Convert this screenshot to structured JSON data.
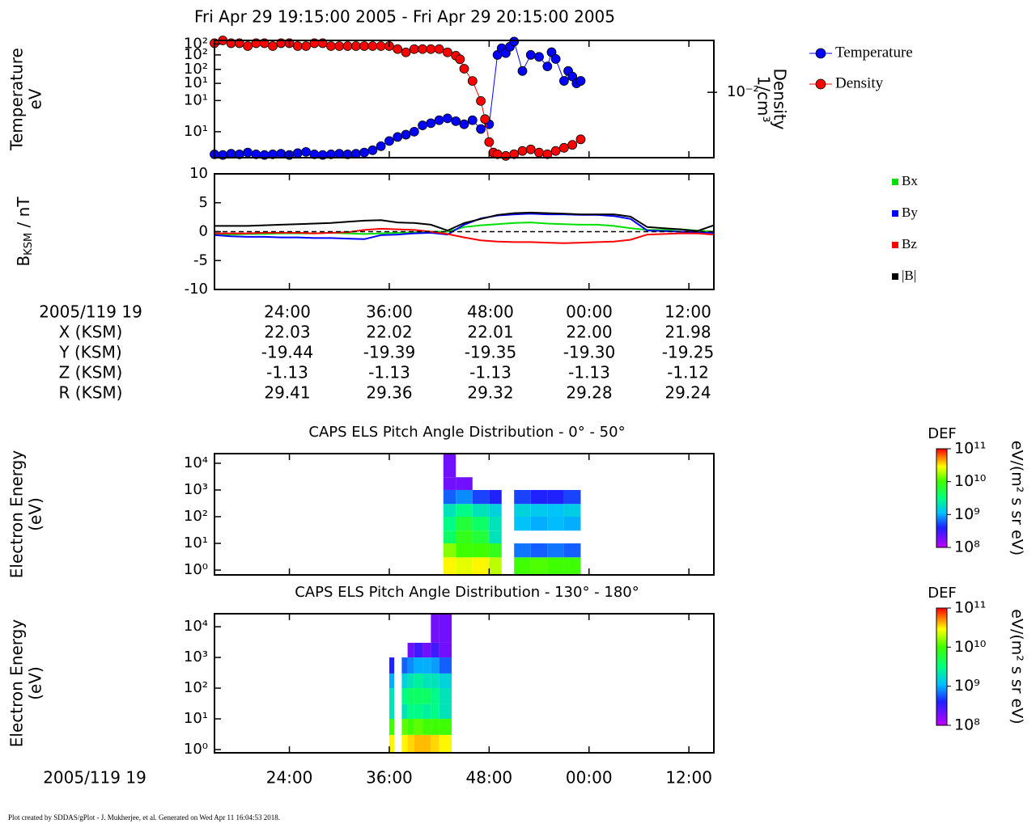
{
  "title": "Fri Apr 29 19:15:00 2005 - Fri Apr 29 20:15:00 2005",
  "chart_data": [
    {
      "type": "line",
      "markers": true,
      "y_label": [
        "Temperature",
        "eV"
      ],
      "y2_label": [
        "Density",
        "1/cm³"
      ],
      "xlim": [
        15,
        75
      ],
      "ylim": [
        4,
        250
      ],
      "y_log": true,
      "yticks": [
        {
          "value": 10,
          "label": "10¹"
        },
        {
          "value": 30,
          "label": "10¹"
        },
        {
          "value": 55,
          "label": "10¹"
        },
        {
          "value": 90,
          "label": "10²"
        },
        {
          "value": 150,
          "label": "10²"
        },
        {
          "value": 220,
          "label": "10²"
        }
      ],
      "y2lim": [
        0.0035,
        0.023
      ],
      "y2_log": true,
      "y2ticks": [
        {
          "value": 0.01,
          "label": "10⁻²"
        }
      ],
      "series": [
        {
          "name": "Temperature",
          "color": "#0000ff",
          "x": [
            15,
            16,
            17,
            18,
            19,
            20,
            21,
            22,
            23,
            24,
            25,
            26,
            27,
            28,
            29,
            30,
            31,
            32,
            33,
            34,
            35,
            36,
            37,
            38,
            39,
            40,
            41,
            42,
            43,
            44,
            45,
            46,
            47,
            48,
            49,
            49.5,
            50,
            50.5,
            51,
            52,
            53,
            54,
            55,
            55.5,
            56,
            57,
            57.5,
            58,
            58.5,
            59
          ],
          "values": [
            4.5,
            4.4,
            4.6,
            4.5,
            4.8,
            4.5,
            4.4,
            4.5,
            4.6,
            4.4,
            4.7,
            4.9,
            4.5,
            4.4,
            4.5,
            4.6,
            4.5,
            4.6,
            4.8,
            5.2,
            6,
            7.2,
            8.3,
            9,
            10,
            12.5,
            13.5,
            15,
            16,
            14.5,
            13,
            15,
            11,
            13,
            150,
            190,
            160,
            200,
            240,
            85,
            150,
            140,
            100,
            165,
            130,
            60,
            85,
            70,
            55,
            60
          ]
        },
        {
          "name": "Density",
          "color": "#ff0000",
          "axis": "y2",
          "x": [
            15,
            16,
            17,
            18,
            19,
            20,
            21,
            22,
            23,
            24,
            25,
            26,
            27,
            28,
            29,
            30,
            31,
            32,
            33,
            34,
            35,
            36,
            37,
            38,
            39,
            40,
            41,
            42,
            43,
            44,
            44.5,
            45,
            46,
            47,
            47.5,
            48,
            48.5,
            49,
            50,
            51,
            52,
            53,
            54,
            55,
            56,
            57,
            58,
            59
          ],
          "values": [
            0.022,
            0.023,
            0.022,
            0.022,
            0.021,
            0.022,
            0.022,
            0.021,
            0.022,
            0.022,
            0.021,
            0.021,
            0.022,
            0.022,
            0.021,
            0.021,
            0.021,
            0.021,
            0.021,
            0.021,
            0.021,
            0.021,
            0.02,
            0.019,
            0.02,
            0.02,
            0.02,
            0.02,
            0.019,
            0.018,
            0.017,
            0.0146,
            0.012,
            0.0087,
            0.0065,
            0.0045,
            0.0038,
            0.0037,
            0.0036,
            0.0037,
            0.0039,
            0.004,
            0.0038,
            0.0037,
            0.0039,
            0.0041,
            0.0043,
            0.0047
          ]
        }
      ]
    },
    {
      "type": "line",
      "y_label": {
        "main": "B",
        "sub": "KSM",
        "rest": " / nT"
      },
      "xlim": [
        15,
        75
      ],
      "ylim": [
        -10,
        10
      ],
      "yticks": [
        -10,
        -5,
        0,
        5,
        10
      ],
      "x": [
        15,
        17,
        19,
        21,
        23,
        25,
        27,
        29,
        31,
        33,
        35,
        37,
        39,
        41,
        43,
        45,
        47,
        49,
        51,
        53,
        55,
        57,
        59,
        61,
        63,
        65,
        67,
        69,
        71,
        73,
        75
      ],
      "series": [
        {
          "name": "Bx",
          "color": "#00e000",
          "values": [
            -0.5,
            -0.5,
            -0.4,
            -0.4,
            -0.3,
            -0.3,
            -0.3,
            -0.2,
            -0.3,
            -0.4,
            -0.3,
            -0.2,
            -0.1,
            0,
            0,
            0.8,
            1.1,
            1.3,
            1.5,
            1.6,
            1.4,
            1.3,
            1.2,
            1.2,
            1.0,
            0.6,
            0.3,
            0.3,
            0.4,
            0.2,
            0
          ]
        },
        {
          "name": "By",
          "color": "#0000ff",
          "values": [
            -0.6,
            -0.8,
            -0.9,
            -0.9,
            -1,
            -1,
            -1.1,
            -1.1,
            -1.2,
            -1.3,
            -0.6,
            -0.5,
            -0.3,
            -0.2,
            -0.5,
            1.2,
            2.3,
            2.8,
            3,
            3.1,
            3,
            3,
            2.9,
            2.9,
            2.7,
            2.2,
            0.2,
            0.1,
            0,
            -0.1,
            -0.2
          ]
        },
        {
          "name": "Bz",
          "color": "#ff0000",
          "values": [
            -0.3,
            -0.3,
            -0.3,
            -0.2,
            -0.2,
            -0.2,
            -0.3,
            -0.2,
            -0.1,
            0.3,
            0.5,
            0.4,
            0.3,
            0,
            -0.4,
            -1,
            -1.5,
            -1.7,
            -1.8,
            -1.8,
            -1.9,
            -2,
            -1.9,
            -1.8,
            -1.7,
            -1.4,
            -0.5,
            -0.4,
            -0.3,
            -0.3,
            -0.5
          ]
        },
        {
          "name": "|B|",
          "color": "#000000",
          "values": [
            1,
            1,
            1,
            1.1,
            1.2,
            1.3,
            1.4,
            1.5,
            1.7,
            1.9,
            2,
            1.6,
            1.5,
            1.2,
            0.2,
            1.5,
            2.2,
            2.9,
            3.2,
            3.3,
            3.2,
            3.1,
            3,
            3,
            3,
            2.6,
            0.8,
            0.6,
            0.4,
            0.1,
            1.1
          ]
        }
      ]
    },
    {
      "type": "heatmap",
      "title": "CAPS ELS Pitch Angle Distribution - 0° - 50°",
      "y_label": [
        "Electron Energy",
        "(eV)"
      ],
      "xlim": [
        15,
        75
      ],
      "ylim": [
        0.66,
        23000
      ],
      "y_log": true,
      "yticks": [
        {
          "value": 1,
          "label": "10⁰"
        },
        {
          "value": 10,
          "label": "10¹"
        },
        {
          "value": 100,
          "label": "10²"
        },
        {
          "value": 1000,
          "label": "10³"
        },
        {
          "value": 10000,
          "label": "10⁴"
        }
      ],
      "x_edges": [
        42.5,
        44,
        46,
        48,
        49.5,
        51,
        53,
        55,
        57,
        59
      ],
      "y_edges": [
        0.66,
        3,
        10,
        30,
        100,
        300,
        1000,
        3000,
        23000
      ],
      "values": [
        [
          30000000000.0,
          15000000000.0,
          4000000000.0,
          3000000000.0,
          2000000000.0,
          600000000.0,
          200000000.0,
          200000000.0
        ],
        [
          25000000000.0,
          10000000000.0,
          8000000000.0,
          6000000000.0,
          3000000000.0,
          800000000.0,
          200000000.0,
          null
        ],
        [
          30000000000.0,
          10000000000.0,
          6000000000.0,
          4000000000.0,
          2000000000.0,
          500000000.0,
          null,
          null
        ],
        [
          20000000000.0,
          8000000000.0,
          2000000000.0,
          2000000000.0,
          1500000000.0,
          400000000.0,
          null,
          null
        ],
        [
          null,
          null,
          null,
          null,
          null,
          null,
          null,
          null
        ],
        [
          10000000000.0,
          700000000.0,
          null,
          1200000000.0,
          1500000000.0,
          500000000.0,
          null,
          null
        ],
        [
          11000000000.0,
          600000000.0,
          null,
          1000000000.0,
          1300000000.0,
          400000000.0,
          null,
          null
        ],
        [
          10000000000.0,
          700000000.0,
          null,
          1100000000.0,
          1200000000.0,
          400000000.0,
          null,
          null
        ],
        [
          10000000000.0,
          600000000.0,
          null,
          1000000000.0,
          1400000000.0,
          500000000.0,
          null,
          null
        ]
      ],
      "colorbar": {
        "label": "DEF",
        "unit": "eV/(m² s sr eV)",
        "lim": [
          100000000.0,
          100000000000.0
        ],
        "ticks": [
          {
            "value": 100000000.0,
            "label": "10⁸"
          },
          {
            "value": 1000000000.0,
            "label": "10⁹"
          },
          {
            "value": 10000000000.0,
            "label": "10¹⁰"
          },
          {
            "value": 100000000000.0,
            "label": "10¹¹"
          }
        ]
      }
    },
    {
      "type": "heatmap",
      "title": "CAPS ELS Pitch Angle Distribution - 130° - 180°",
      "y_label": [
        "Electron Energy",
        "(eV)"
      ],
      "x_label": "2005/119 19",
      "xlim": [
        15,
        75
      ],
      "xticks": [
        {
          "value": 24,
          "label": "24:00"
        },
        {
          "value": 36,
          "label": "36:00"
        },
        {
          "value": 48,
          "label": "48:00"
        },
        {
          "value": 60,
          "label": "00:00"
        },
        {
          "value": 72,
          "label": "12:00"
        }
      ],
      "ylim": [
        0.785,
        26500
      ],
      "y_log": true,
      "yticks": [
        {
          "value": 1,
          "label": "10⁰"
        },
        {
          "value": 10,
          "label": "10¹"
        },
        {
          "value": 100,
          "label": "10²"
        },
        {
          "value": 1000,
          "label": "10³"
        },
        {
          "value": 10000,
          "label": "10⁴"
        }
      ],
      "x_edges": [
        36,
        36.6,
        37.5,
        38.2,
        39,
        40,
        41,
        42,
        43.5
      ],
      "y_edges": [
        0.785,
        3,
        10,
        30,
        100,
        300,
        1000,
        3000,
        26500
      ],
      "values": [
        [
          30000000000.0,
          10000000000.0,
          2000000000.0,
          2000000000.0,
          1000000000.0,
          400000000.0,
          null,
          null
        ],
        [
          null,
          null,
          null,
          null,
          null,
          null,
          null,
          null
        ],
        [
          30000000000.0,
          12000000000.0,
          2000000000.0,
          3000000000.0,
          1500000000.0,
          600000000.0,
          null,
          null
        ],
        [
          35000000000.0,
          10000000000.0,
          3000000000.0,
          4000000000.0,
          2000000000.0,
          800000000.0,
          200000000.0,
          null
        ],
        [
          40000000000.0,
          12000000000.0,
          3000000000.0,
          4000000000.0,
          2500000000.0,
          1000000000.0,
          300000000.0,
          null
        ],
        [
          40000000000.0,
          10000000000.0,
          2500000000.0,
          4000000000.0,
          2000000000.0,
          1000000000.0,
          200000000.0,
          null
        ],
        [
          35000000000.0,
          10000000000.0,
          3000000000.0,
          3000000000.0,
          2000000000.0,
          900000000.0,
          300000000.0,
          200000000.0
        ],
        [
          30000000000.0,
          10000000000.0,
          2000000000.0,
          2000000000.0,
          1500000000.0,
          600000000.0,
          200000000.0,
          200000000.0
        ]
      ],
      "colorbar": {
        "label": "DEF",
        "unit": "eV/(m² s sr eV)",
        "lim": [
          100000000.0,
          100000000000.0
        ],
        "ticks": [
          {
            "value": 100000000.0,
            "label": "10⁸"
          },
          {
            "value": 1000000000.0,
            "label": "10⁹"
          },
          {
            "value": 10000000000.0,
            "label": "10¹⁰"
          },
          {
            "value": 100000000000.0,
            "label": "10¹¹"
          }
        ]
      }
    }
  ],
  "ephemeris": {
    "rows": [
      [
        "2005/119 19",
        "24:00",
        "36:00",
        "48:00",
        "00:00",
        "12:00"
      ],
      [
        "X (KSM)",
        "22.03",
        "22.02",
        "22.01",
        "22.00",
        "21.98"
      ],
      [
        "Y (KSM)",
        "-19.44",
        "-19.39",
        "-19.35",
        "-19.30",
        "-19.25"
      ],
      [
        "Z (KSM)",
        "-1.13",
        "-1.13",
        "-1.13",
        "-1.13",
        "-1.12"
      ],
      [
        "R (KSM)",
        "29.41",
        "29.36",
        "29.32",
        "29.28",
        "29.24"
      ]
    ]
  },
  "footer": "Plot created by SDDAS/gPlot - J. Mukherjee, et al.  Generated on Wed Apr 11 16:04:53 2018."
}
